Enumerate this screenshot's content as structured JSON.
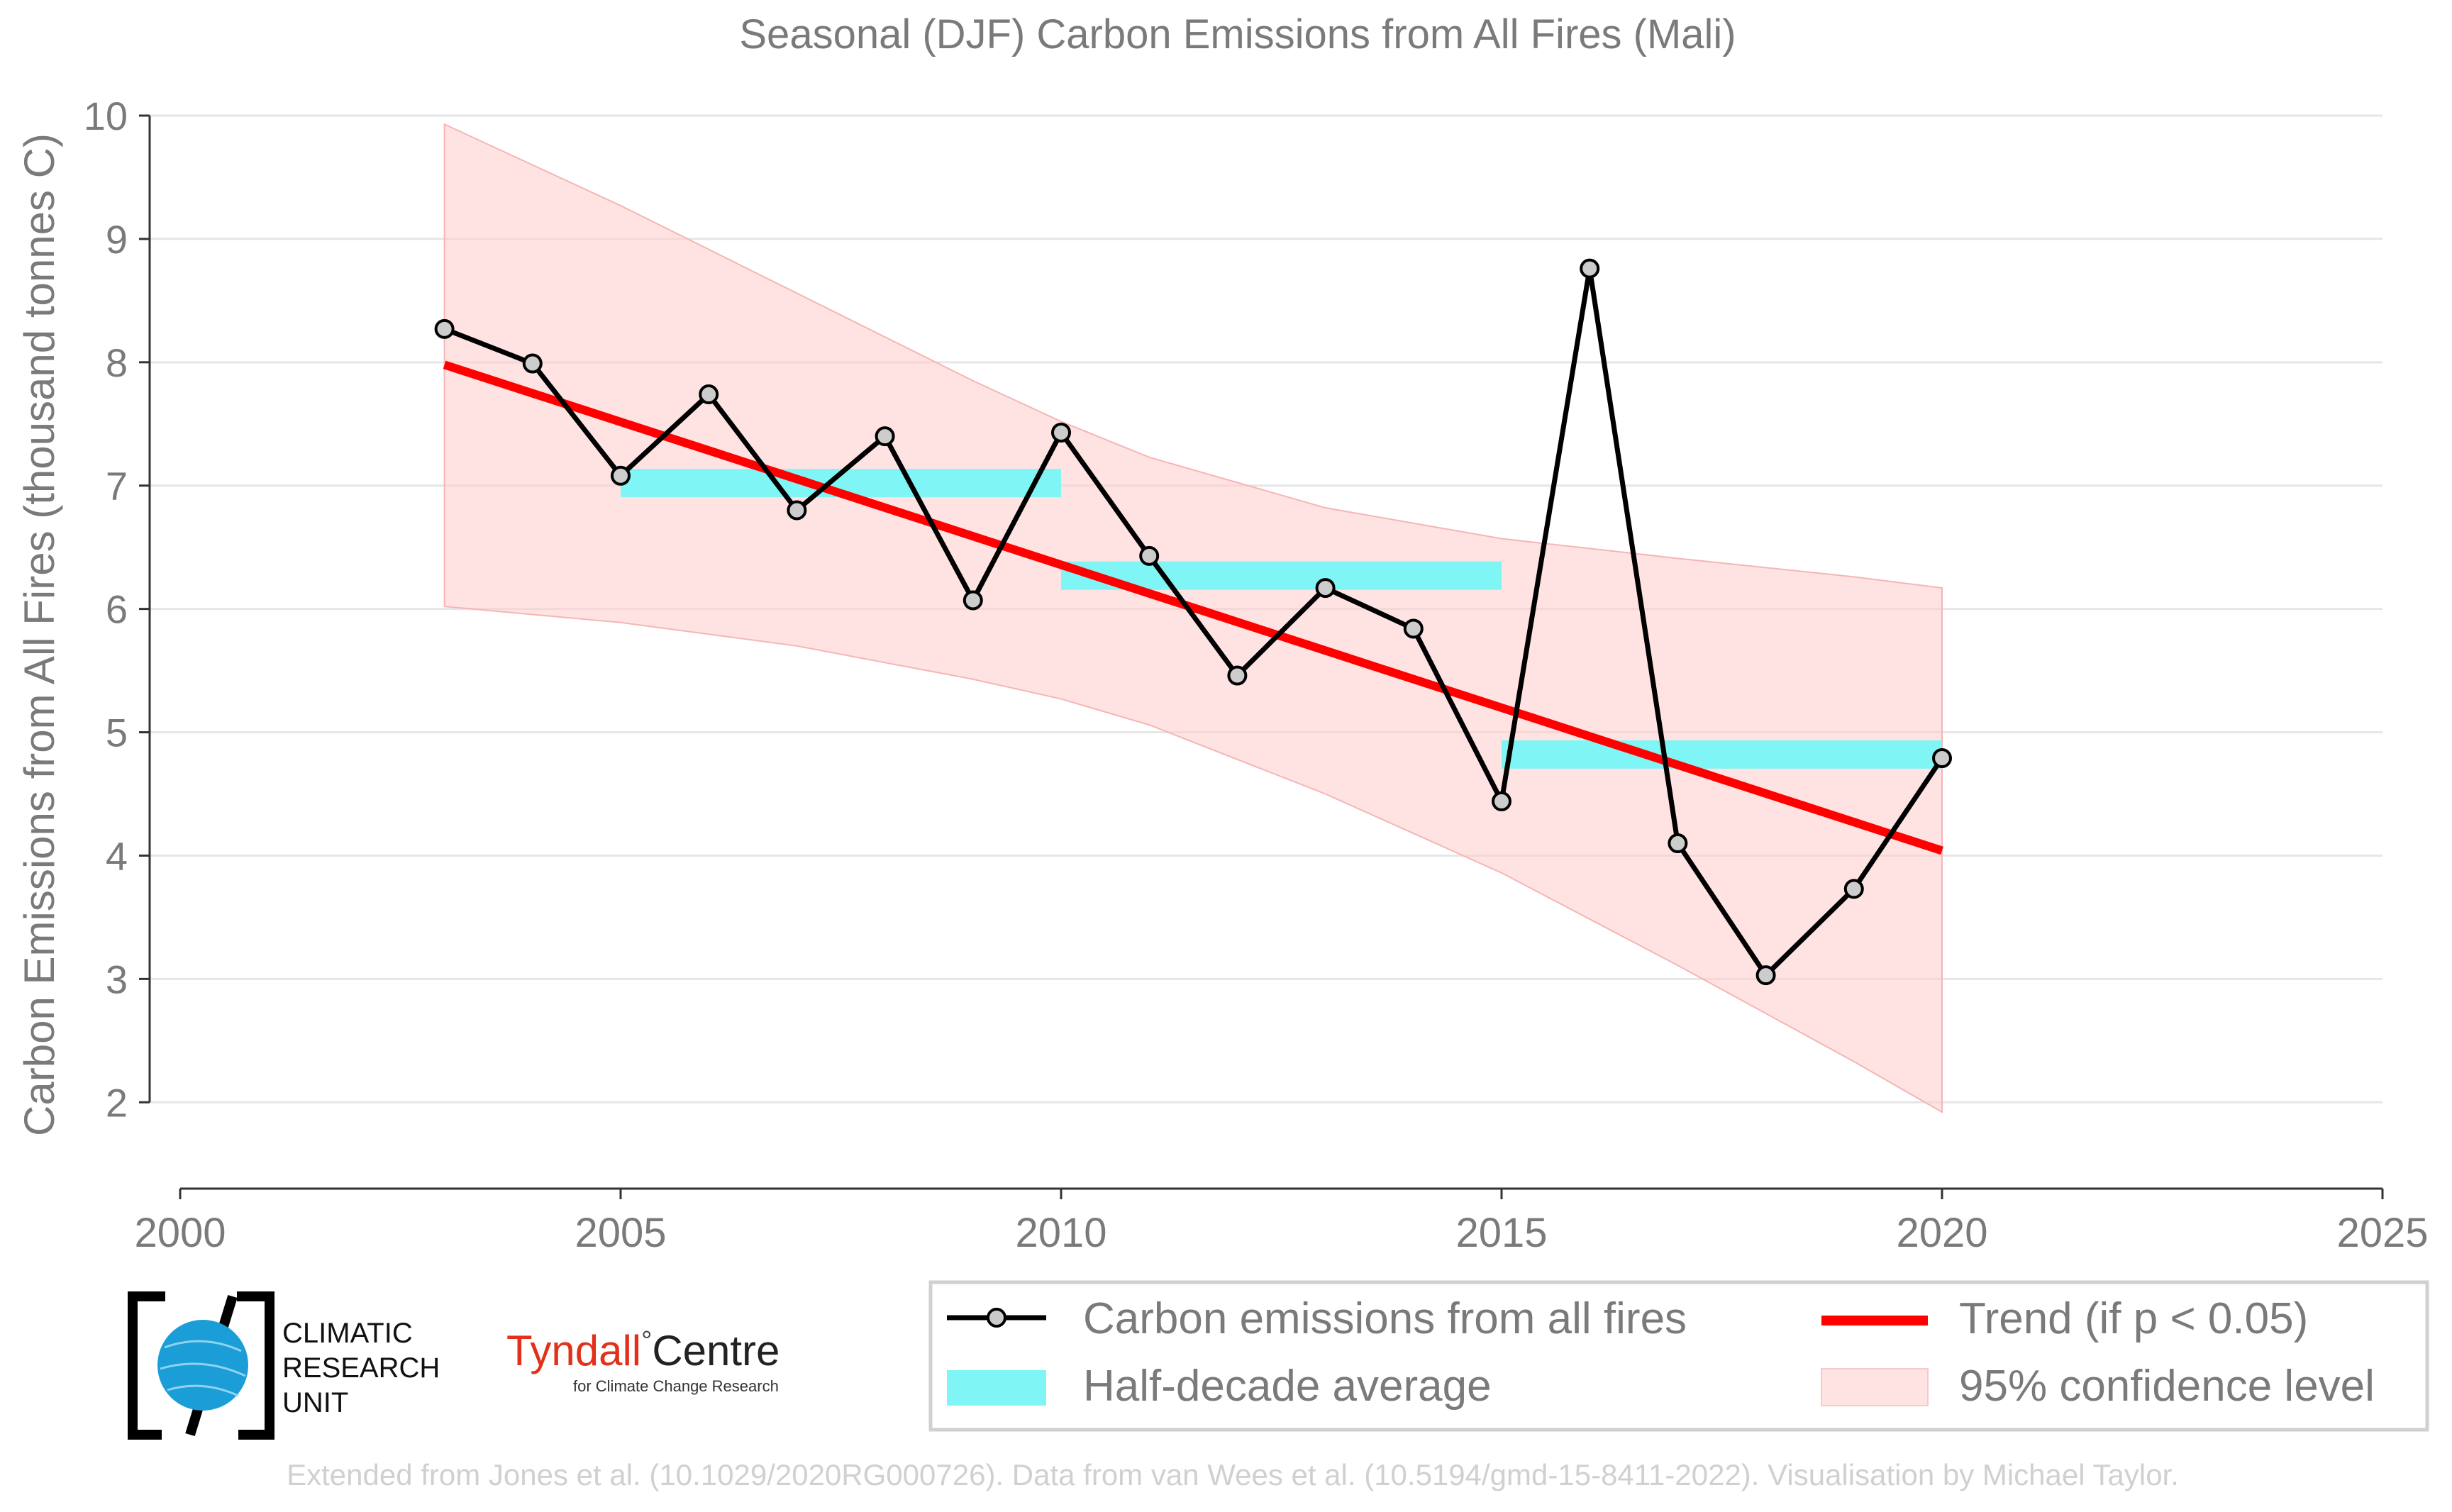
{
  "chart_data": {
    "type": "line",
    "title": "Seasonal (DJF) Carbon Emissions from All Fires (Mali)",
    "xlabel": "",
    "ylabel": "Carbon Emissions from All Fires (thousand tonnes C)",
    "xlim": [
      2000,
      2025
    ],
    "ylim": [
      1.3,
      10
    ],
    "x_ticks": [
      2000,
      2005,
      2010,
      2015,
      2020,
      2025
    ],
    "y_ticks": [
      2,
      3,
      4,
      5,
      6,
      7,
      8,
      9,
      10
    ],
    "grid": "horizontal",
    "legend_position": "bottom-right",
    "series": [
      {
        "name": "Carbon emissions from all fires",
        "color": "#000000",
        "marker_fill": "#cccccc",
        "x": [
          2003,
          2004,
          2005,
          2006,
          2007,
          2008,
          2009,
          2010,
          2011,
          2012,
          2013,
          2014,
          2015,
          2016,
          2017,
          2018,
          2019,
          2020
        ],
        "values": [
          8.27,
          7.99,
          7.08,
          7.74,
          6.8,
          7.4,
          6.07,
          7.43,
          6.43,
          5.46,
          6.17,
          5.84,
          4.44,
          8.76,
          4.1,
          3.03,
          3.73,
          4.79
        ]
      }
    ],
    "half_decade_average": {
      "name": "Half-decade average",
      "color": "#80f5f5",
      "segments": [
        {
          "x_start": 2005,
          "x_end": 2010,
          "value": 7.02
        },
        {
          "x_start": 2010,
          "x_end": 2015,
          "value": 6.27
        },
        {
          "x_start": 2015,
          "x_end": 2020,
          "value": 4.82
        }
      ]
    },
    "trend": {
      "name": "Trend (if p < 0.05)",
      "color": "#ff0000",
      "x": [
        2003,
        2020
      ],
      "values": [
        7.98,
        4.04
      ]
    },
    "confidence_band": {
      "name": "95% confidence level",
      "color": "#ffcccc",
      "x": [
        2003,
        2005,
        2007,
        2009,
        2010,
        2011,
        2013,
        2015,
        2017,
        2019,
        2020
      ],
      "upper": [
        9.93,
        9.27,
        8.56,
        7.85,
        7.52,
        7.23,
        6.82,
        6.57,
        6.41,
        6.26,
        6.17
      ],
      "lower": [
        6.02,
        5.89,
        5.7,
        5.43,
        5.27,
        5.06,
        4.5,
        3.86,
        3.11,
        2.33,
        1.92
      ]
    }
  },
  "logos": {
    "cru": {
      "lines": [
        "CLIMATIC",
        "RESEARCH",
        "UNIT"
      ],
      "icon": "globe-icon",
      "color": "#1b9ed8"
    },
    "tyndall": {
      "name": "Tyndall",
      "degree": "°",
      "centre": "Centre",
      "subtitle": "for Climate Change Research",
      "color": "#e2301a"
    }
  },
  "credit": "Extended from Jones et al. (10.1029/2020RG000726). Data from van Wees et al. (10.5194/gmd-15-8411-2022). Visualisation by Michael Taylor."
}
